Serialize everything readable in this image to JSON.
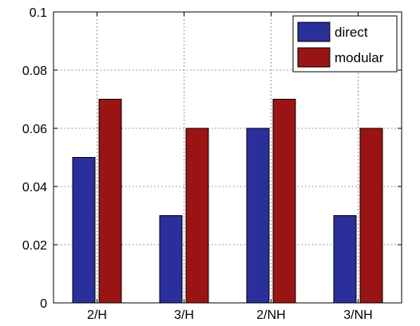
{
  "chart_data": {
    "type": "bar",
    "title": "",
    "xlabel": "",
    "ylabel": "",
    "categories": [
      "2/H",
      "3/H",
      "2/NH",
      "3/NH"
    ],
    "series": [
      {
        "name": "direct",
        "values": [
          0.05,
          0.03,
          0.06,
          0.03
        ],
        "color": "#2b2f9b"
      },
      {
        "name": "modular",
        "values": [
          0.07,
          0.06,
          0.07,
          0.06
        ],
        "color": "#9b1414"
      }
    ],
    "ylim": [
      0,
      0.1
    ],
    "yticks": [
      "0",
      "0.02",
      "0.04",
      "0.06",
      "0.08",
      "0.1"
    ],
    "grid": true,
    "legend": "top-right"
  }
}
